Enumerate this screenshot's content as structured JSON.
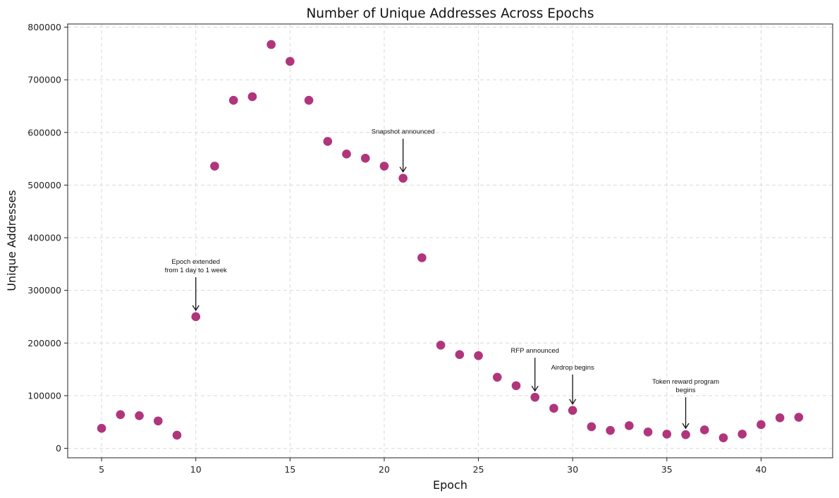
{
  "chart_data": {
    "type": "scatter",
    "title": "Number of Unique Addresses Across Epochs",
    "xlabel": "Epoch",
    "ylabel": "Unique Addresses",
    "xlim": [
      3.2,
      43.8
    ],
    "ylim": [
      -18000,
      806000
    ],
    "xticks": [
      5,
      10,
      15,
      20,
      25,
      30,
      35,
      40
    ],
    "yticks": [
      0,
      100000,
      200000,
      300000,
      400000,
      500000,
      600000,
      700000,
      800000
    ],
    "grid": true,
    "marker_color": "#b0357c",
    "x": [
      5,
      6,
      7,
      8,
      9,
      10,
      11,
      12,
      13,
      14,
      15,
      16,
      17,
      18,
      19,
      20,
      21,
      22,
      23,
      24,
      25,
      26,
      27,
      28,
      29,
      30,
      31,
      32,
      33,
      34,
      35,
      36,
      37,
      38,
      39,
      40,
      41,
      42
    ],
    "y": [
      38000,
      64000,
      62000,
      52000,
      25000,
      250000,
      536000,
      661000,
      668000,
      767000,
      735000,
      661000,
      583000,
      559000,
      551000,
      536000,
      513000,
      362000,
      196000,
      178000,
      176000,
      135000,
      119000,
      97000,
      76000,
      72000,
      41000,
      34000,
      43000,
      31000,
      27000,
      26000,
      35000,
      20000,
      27000,
      45000,
      58000,
      59000
    ],
    "annotations": [
      {
        "lines": [
          "Epoch extended",
          "from 1 day to 1 week"
        ],
        "x": 10,
        "y": 250000,
        "text_y": 325000
      },
      {
        "lines": [
          "Snapshot announced"
        ],
        "x": 21,
        "y": 513000,
        "text_y": 588000
      },
      {
        "lines": [
          "RFP announced"
        ],
        "x": 28,
        "y": 97000,
        "text_y": 172000
      },
      {
        "lines": [
          "Airdrop begins"
        ],
        "x": 30,
        "y": 72000,
        "text_y": 140000
      },
      {
        "lines": [
          "Token reward program",
          "begins"
        ],
        "x": 36,
        "y": 26000,
        "text_y": 97000
      }
    ]
  }
}
